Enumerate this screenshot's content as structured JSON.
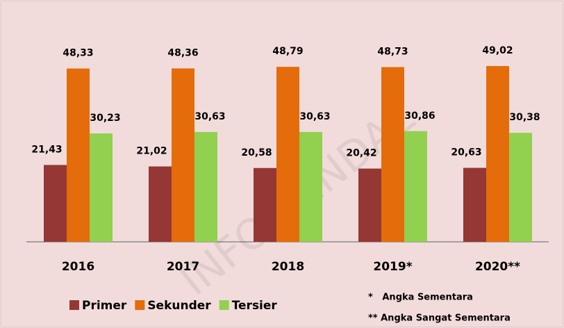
{
  "chart_data": {
    "type": "bar",
    "categories": [
      "2016",
      "2017",
      "2018",
      "2019*",
      "2020**"
    ],
    "series": [
      {
        "name": "Primer",
        "color": "#953735",
        "values": [
          21.43,
          21.02,
          20.58,
          20.42,
          20.63
        ],
        "value_labels": [
          "21,43",
          "21,02",
          "20,58",
          "20,42",
          "20,63"
        ]
      },
      {
        "name": "Sekunder",
        "color": "#e46c0a",
        "values": [
          48.33,
          48.36,
          48.79,
          48.73,
          49.02
        ],
        "value_labels": [
          "48,33",
          "48,36",
          "48,79",
          "48,73",
          "49,02"
        ]
      },
      {
        "name": "Tersier",
        "color": "#92d050",
        "values": [
          30.23,
          30.63,
          30.63,
          30.86,
          30.38
        ],
        "value_labels": [
          "30,23",
          "30,63",
          "30,63",
          "30,86",
          "30,38"
        ]
      }
    ],
    "ylim": [
      0,
      50
    ],
    "legend": "bottom",
    "notes": [
      "*   Angka Sementara",
      "** Angka Sangat Sementara"
    ],
    "watermark": "INFO KENDAL"
  }
}
